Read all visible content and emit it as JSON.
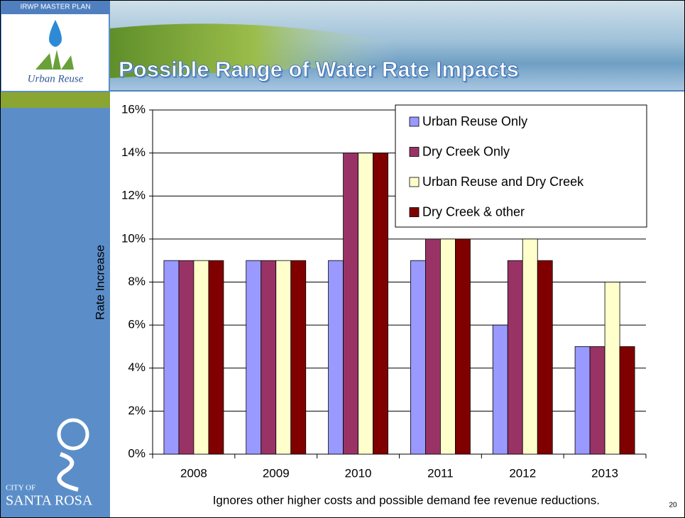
{
  "slide": {
    "header_label": "IRWP MASTER PLAN",
    "logo_text": "Urban Reuse",
    "city_small": "CITY OF",
    "city_large": "SANTA ROSA",
    "footnote": "Ignores other higher costs and possible demand fee revenue reductions.",
    "page_number": "20"
  },
  "chart_data": {
    "type": "bar",
    "title": "Possible Range of Water Rate Impacts",
    "y_label": "Rate Increase",
    "categories": [
      "2008",
      "2009",
      "2010",
      "2011",
      "2012",
      "2013"
    ],
    "series": [
      {
        "name": "Urban Reuse Only",
        "color": "#9999ff",
        "values": [
          9,
          9,
          9,
          9,
          6,
          5
        ]
      },
      {
        "name": "Dry Creek Only",
        "color": "#993366",
        "values": [
          9,
          9,
          14,
          10,
          9,
          5
        ]
      },
      {
        "name": "Urban Reuse and Dry Creek",
        "color": "#ffffcc",
        "values": [
          9,
          9,
          14,
          10,
          10,
          8
        ]
      },
      {
        "name": "Dry Creek & other",
        "color": "#800000",
        "values": [
          9,
          9,
          14,
          10,
          9,
          5
        ]
      }
    ],
    "ylim": [
      0,
      16
    ],
    "yticks": [
      {
        "value": 0,
        "label": "0%"
      },
      {
        "value": 2,
        "label": "2%"
      },
      {
        "value": 4,
        "label": "4%"
      },
      {
        "value": 6,
        "label": "6%"
      },
      {
        "value": 8,
        "label": "8%"
      },
      {
        "value": 10,
        "label": "10%"
      },
      {
        "value": 12,
        "label": "12%"
      },
      {
        "value": 14,
        "label": "14%"
      },
      {
        "value": 16,
        "label": "16%"
      }
    ],
    "grid": true,
    "legend": "top right"
  }
}
